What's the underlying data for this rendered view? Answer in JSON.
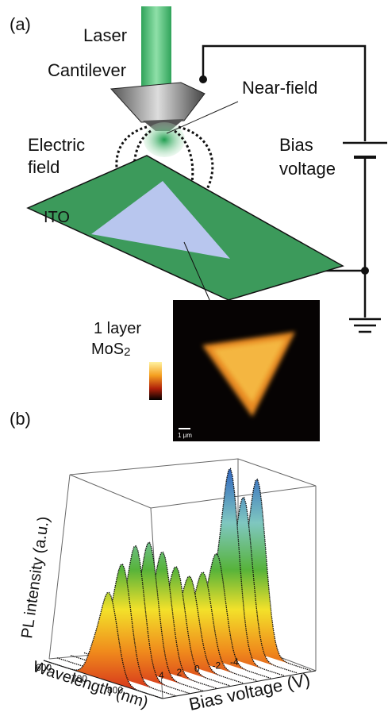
{
  "panel_a": {
    "label": "(a)",
    "laser": "Laser",
    "cantilever": "Cantilever",
    "near_field": "Near-field",
    "electric_field": [
      "Electric",
      "field"
    ],
    "bias_voltage": [
      "Bias",
      "voltage"
    ],
    "ito": "ITO",
    "layer": "1 layer",
    "material": "MoS",
    "material_subscript": "2",
    "scale_bar": "1 μm"
  },
  "panel_b": {
    "label": "(b)",
    "z_axis_label": "PL intensity (a.u.)",
    "x_axis_label": "Wavelength (nm)",
    "y_axis_label": "Bias voltage (V)",
    "wavelength_ticks": [
      "600",
      "700",
      "800"
    ],
    "bias_ticks": [
      "4",
      "2",
      "0",
      "-2",
      "-4"
    ]
  }
}
